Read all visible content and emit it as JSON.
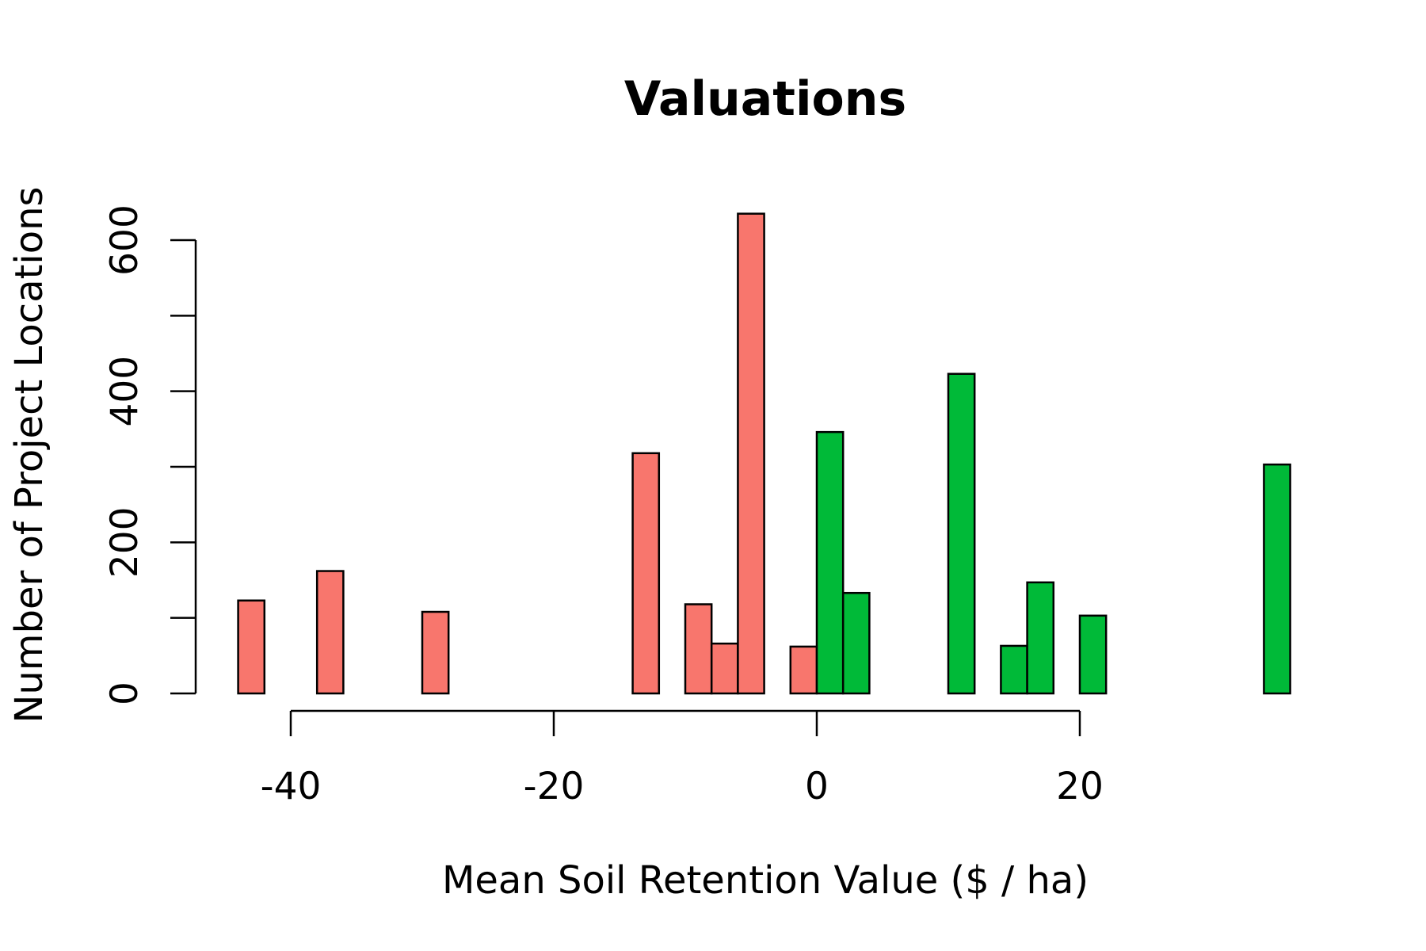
{
  "chart_data": {
    "type": "bar",
    "title": "Valuations",
    "xlabel": "Mean Soil Retention Value ($ / ha)",
    "ylabel": "Number of Project Locations",
    "xlim": [
      -48,
      38
    ],
    "ylim": [
      0,
      600
    ],
    "x_ticks": [
      -40,
      -20,
      0,
      20
    ],
    "y_ticks": [
      0,
      200,
      400,
      600
    ],
    "y_minor_ticks": [
      100,
      300,
      500
    ],
    "grid": false,
    "legend": "none",
    "bin_width": 2,
    "colors": {
      "negative": "#F8766D",
      "positive": "#00BA38",
      "outline": "#000000"
    },
    "bins": [
      {
        "x0": -44,
        "x1": -42,
        "count": 123,
        "sign": "negative"
      },
      {
        "x0": -42,
        "x1": -40,
        "count": 0,
        "sign": "negative"
      },
      {
        "x0": -40,
        "x1": -38,
        "count": 0,
        "sign": "negative"
      },
      {
        "x0": -38,
        "x1": -36,
        "count": 162,
        "sign": "negative"
      },
      {
        "x0": -36,
        "x1": -34,
        "count": 0,
        "sign": "negative"
      },
      {
        "x0": -34,
        "x1": -32,
        "count": 0,
        "sign": "negative"
      },
      {
        "x0": -32,
        "x1": -30,
        "count": 0,
        "sign": "negative"
      },
      {
        "x0": -30,
        "x1": -28,
        "count": 108,
        "sign": "negative"
      },
      {
        "x0": -28,
        "x1": -26,
        "count": 0,
        "sign": "negative"
      },
      {
        "x0": -26,
        "x1": -24,
        "count": 0,
        "sign": "negative"
      },
      {
        "x0": -24,
        "x1": -22,
        "count": 0,
        "sign": "negative"
      },
      {
        "x0": -22,
        "x1": -20,
        "count": 0,
        "sign": "negative"
      },
      {
        "x0": -20,
        "x1": -18,
        "count": 0,
        "sign": "negative"
      },
      {
        "x0": -18,
        "x1": -16,
        "count": 0,
        "sign": "negative"
      },
      {
        "x0": -16,
        "x1": -14,
        "count": 0,
        "sign": "negative"
      },
      {
        "x0": -14,
        "x1": -12,
        "count": 318,
        "sign": "negative"
      },
      {
        "x0": -12,
        "x1": -10,
        "count": 0,
        "sign": "negative"
      },
      {
        "x0": -10,
        "x1": -8,
        "count": 118,
        "sign": "negative"
      },
      {
        "x0": -8,
        "x1": -6,
        "count": 66,
        "sign": "negative"
      },
      {
        "x0": -6,
        "x1": -4,
        "count": 635,
        "sign": "negative"
      },
      {
        "x0": -4,
        "x1": -2,
        "count": 0,
        "sign": "negative"
      },
      {
        "x0": -2,
        "x1": 0,
        "count": 62,
        "sign": "negative"
      },
      {
        "x0": 0,
        "x1": 2,
        "count": 346,
        "sign": "positive"
      },
      {
        "x0": 2,
        "x1": 4,
        "count": 133,
        "sign": "positive"
      },
      {
        "x0": 4,
        "x1": 6,
        "count": 0,
        "sign": "positive"
      },
      {
        "x0": 6,
        "x1": 8,
        "count": 0,
        "sign": "positive"
      },
      {
        "x0": 8,
        "x1": 10,
        "count": 0,
        "sign": "positive"
      },
      {
        "x0": 10,
        "x1": 12,
        "count": 423,
        "sign": "positive"
      },
      {
        "x0": 12,
        "x1": 14,
        "count": 0,
        "sign": "positive"
      },
      {
        "x0": 14,
        "x1": 16,
        "count": 63,
        "sign": "positive"
      },
      {
        "x0": 16,
        "x1": 18,
        "count": 147,
        "sign": "positive"
      },
      {
        "x0": 18,
        "x1": 20,
        "count": 0,
        "sign": "positive"
      },
      {
        "x0": 20,
        "x1": 22,
        "count": 103,
        "sign": "positive"
      },
      {
        "x0": 22,
        "x1": 24,
        "count": 0,
        "sign": "positive"
      },
      {
        "x0": 24,
        "x1": 26,
        "count": 0,
        "sign": "positive"
      },
      {
        "x0": 26,
        "x1": 28,
        "count": 0,
        "sign": "positive"
      },
      {
        "x0": 28,
        "x1": 30,
        "count": 0,
        "sign": "positive"
      },
      {
        "x0": 30,
        "x1": 32,
        "count": 0,
        "sign": "positive"
      },
      {
        "x0": 32,
        "x1": 34,
        "count": 0,
        "sign": "positive"
      },
      {
        "x0": 34,
        "x1": 36,
        "count": 303,
        "sign": "positive"
      }
    ]
  }
}
